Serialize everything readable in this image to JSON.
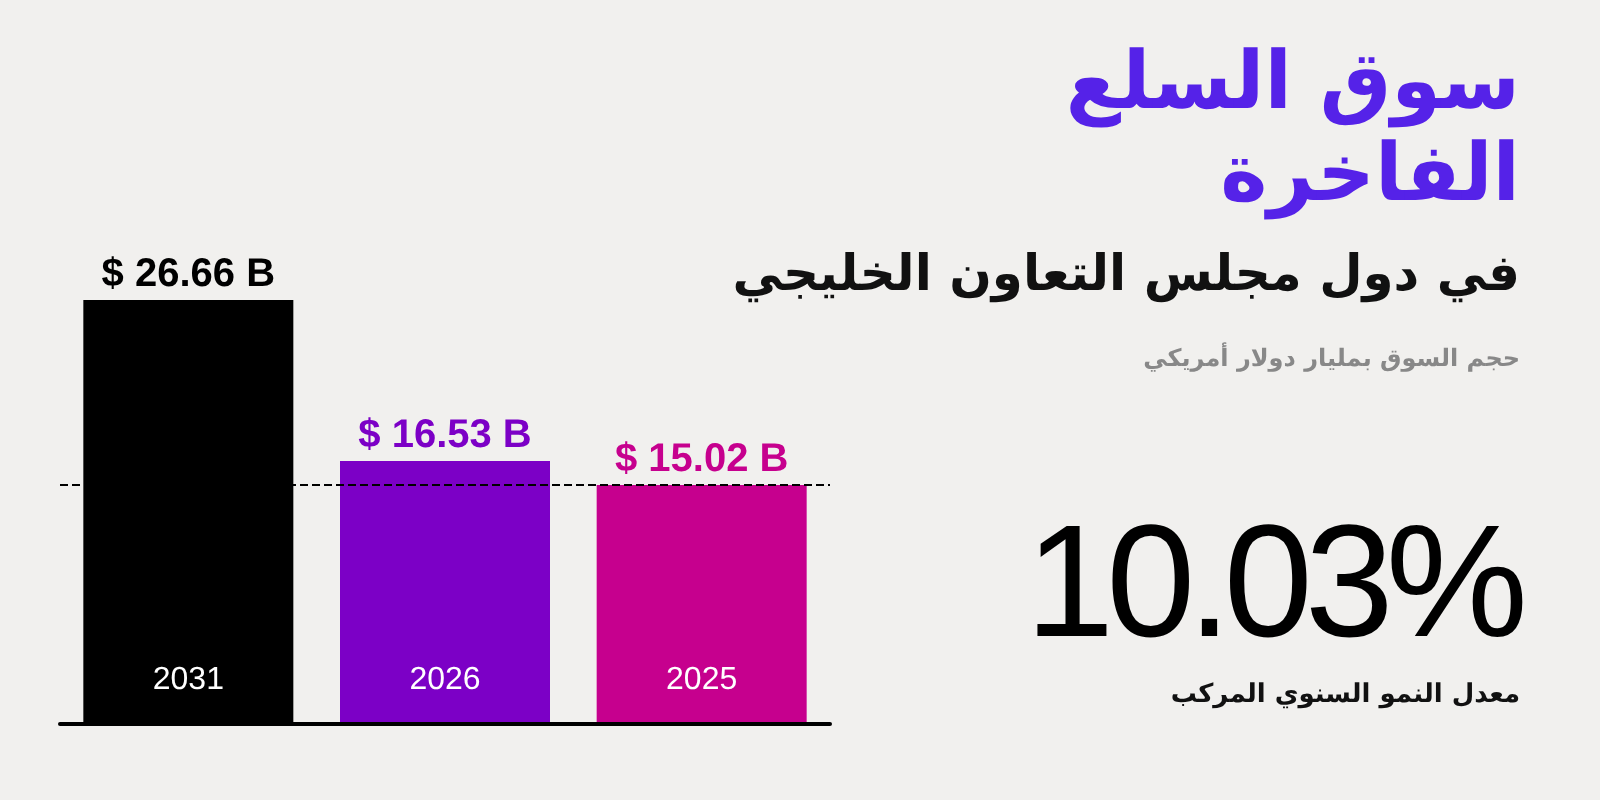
{
  "chart_data": {
    "type": "bar",
    "title": "سوق السلع الفاخرة",
    "subtitle": "في دول مجلس التعاون الخليجي",
    "annotations": [
      "حجم السوق بمليار دولار أمريكي",
      "10.03%",
      "معدل النمو السنوي المركب"
    ],
    "categories": [
      "2031",
      "2026",
      "2025"
    ],
    "values": [
      26.66,
      16.53,
      15.02
    ],
    "colors": [
      "#000000",
      "#7c00c6",
      "#c6008e"
    ],
    "value_labels": [
      "$ 26.66 B",
      "$ 16.53 B",
      "$ 15.02 B"
    ],
    "ref_lines": [
      {
        "axis": "y",
        "value": 15.02,
        "color": "#000000",
        "line_style": "dashed"
      }
    ]
  }
}
